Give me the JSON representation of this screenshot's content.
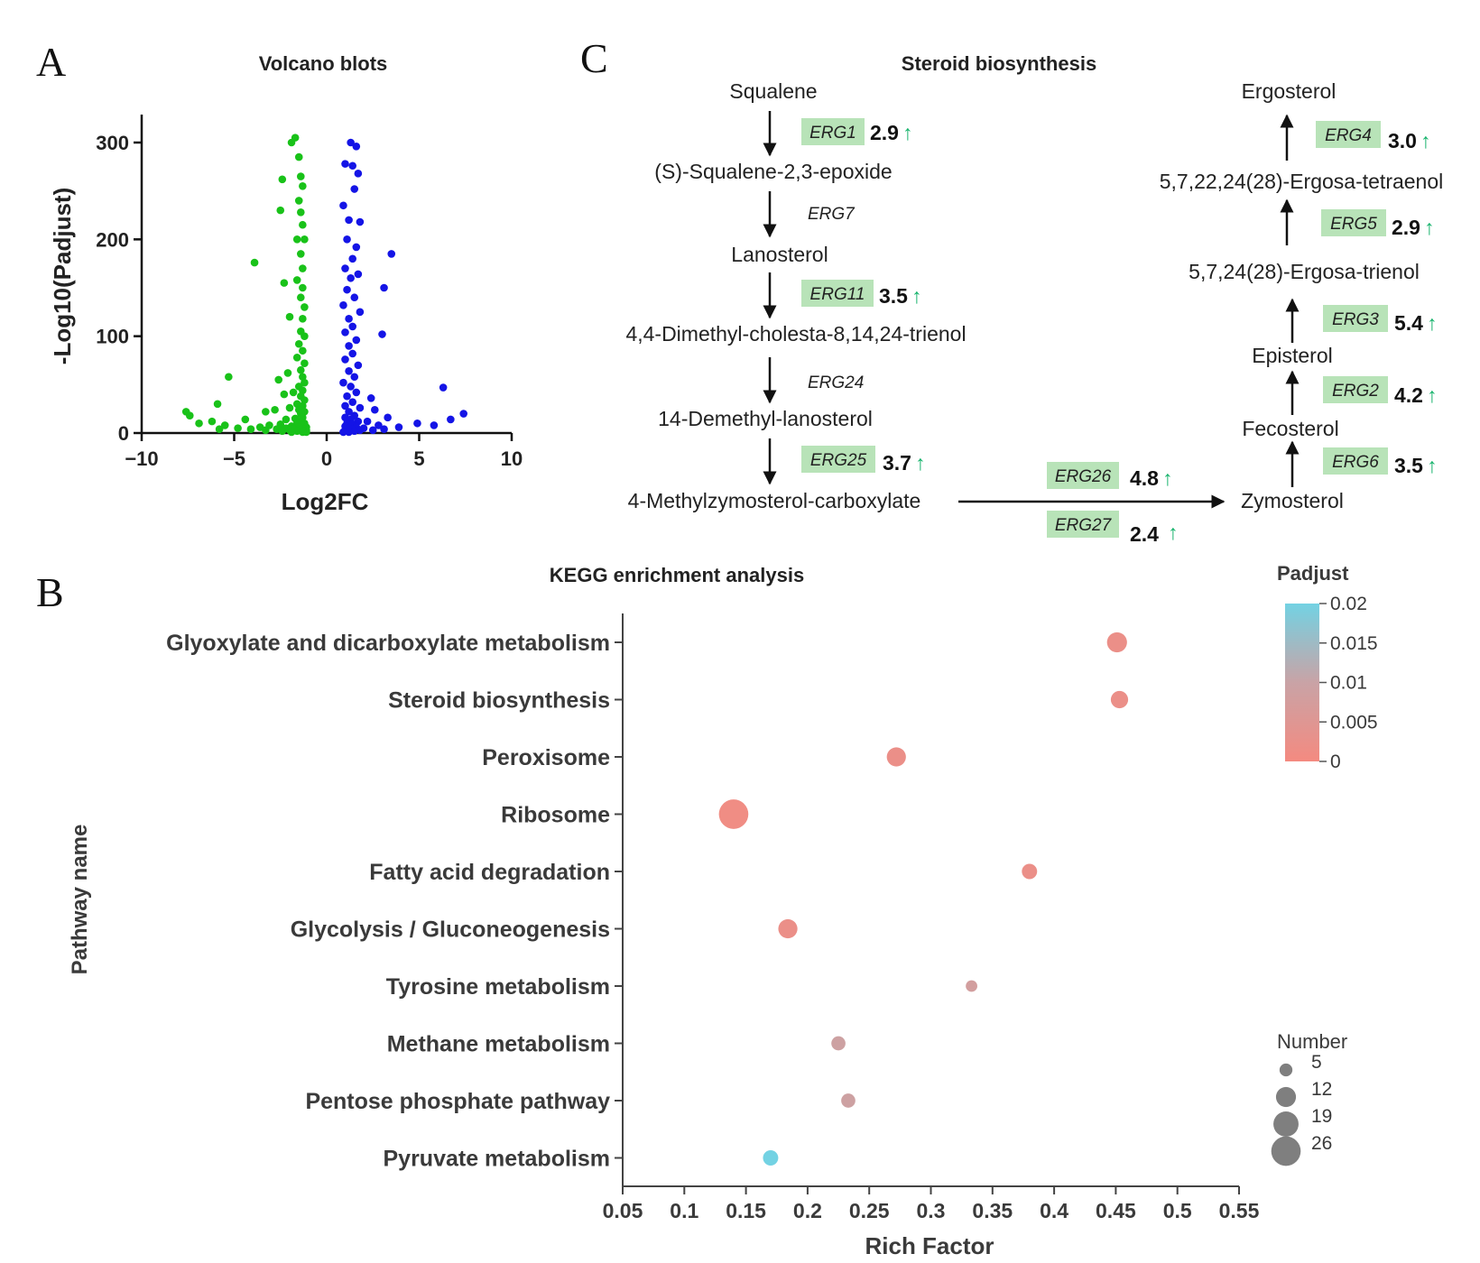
{
  "panels": {
    "a": "A",
    "b": "B",
    "c": "C"
  },
  "chart_data": [
    {
      "type": "scatter",
      "title": "Volcano blots",
      "xlabel": "Log2FC",
      "ylabel": "-Log10(Padjust)",
      "xlim": [
        -10,
        10
      ],
      "ylim": [
        0,
        330
      ],
      "x_ticks": [
        "−10",
        "−5",
        "0",
        "5",
        "10"
      ],
      "x_tick_values": [
        -10,
        -5,
        0,
        5,
        10
      ],
      "y_ticks": [
        "0",
        "100",
        "200",
        "300"
      ],
      "y_tick_values": [
        0,
        100,
        200,
        300
      ],
      "colors": {
        "down": "#19c219",
        "up": "#1414e6"
      },
      "series": [
        {
          "name": "down",
          "points": [
            [
              -1.9,
              300
            ],
            [
              -1.7,
              305
            ],
            [
              -1.5,
              285
            ],
            [
              -1.4,
              265
            ],
            [
              -1.3,
              255
            ],
            [
              -1.5,
              240
            ],
            [
              -2.4,
              262
            ],
            [
              -2.5,
              230
            ],
            [
              -1.4,
              228
            ],
            [
              -1.3,
              215
            ],
            [
              -1.6,
              200
            ],
            [
              -1.2,
              200
            ],
            [
              -1.4,
              185
            ],
            [
              -1.3,
              170
            ],
            [
              -3.9,
              176
            ],
            [
              -1.6,
              158
            ],
            [
              -1.3,
              150
            ],
            [
              -2.3,
              155
            ],
            [
              -1.4,
              140
            ],
            [
              -1.2,
              130
            ],
            [
              -2.0,
              120
            ],
            [
              -1.3,
              118
            ],
            [
              -1.4,
              105
            ],
            [
              -1.2,
              100
            ],
            [
              -1.5,
              92
            ],
            [
              -1.3,
              85
            ],
            [
              -1.6,
              78
            ],
            [
              -1.2,
              72
            ],
            [
              -1.4,
              65
            ],
            [
              -2.1,
              62
            ],
            [
              -1.3,
              58
            ],
            [
              -2.6,
              55
            ],
            [
              -5.3,
              58
            ],
            [
              -1.2,
              52
            ],
            [
              -1.5,
              48
            ],
            [
              -1.3,
              44
            ],
            [
              -1.8,
              42
            ],
            [
              -2.3,
              40
            ],
            [
              -1.4,
              38
            ],
            [
              -1.2,
              34
            ],
            [
              -1.6,
              30
            ],
            [
              -1.3,
              28
            ],
            [
              -2.0,
              26
            ],
            [
              -5.9,
              30
            ],
            [
              -1.5,
              24
            ],
            [
              -1.2,
              22
            ],
            [
              -2.8,
              24
            ],
            [
              -1.4,
              20
            ],
            [
              -3.3,
              22
            ],
            [
              -7.6,
              22
            ],
            [
              -7.4,
              18
            ],
            [
              -1.3,
              16
            ],
            [
              -1.7,
              15
            ],
            [
              -2.2,
              14
            ],
            [
              -1.4,
              12
            ],
            [
              -4.4,
              14
            ],
            [
              -6.2,
              12
            ],
            [
              -1.2,
              10
            ],
            [
              -1.6,
              10
            ],
            [
              -2.5,
              9
            ],
            [
              -3.1,
              8
            ],
            [
              -5.5,
              8
            ],
            [
              -6.9,
              10
            ],
            [
              -1.3,
              8
            ],
            [
              -1.9,
              7
            ],
            [
              -1.1,
              6
            ],
            [
              -1.5,
              6
            ],
            [
              -3.6,
              6
            ],
            [
              -4.8,
              5
            ],
            [
              -2.2,
              5
            ],
            [
              -1.2,
              4
            ],
            [
              -1.8,
              4
            ],
            [
              -2.7,
              4
            ],
            [
              -4.1,
              4
            ],
            [
              -5.8,
              4
            ],
            [
              -1.1,
              3
            ],
            [
              -1.4,
              3
            ],
            [
              -2.0,
              3
            ],
            [
              -3.3,
              3
            ],
            [
              -1.2,
              2
            ],
            [
              -1.6,
              2
            ],
            [
              -2.4,
              2
            ],
            [
              -1.1,
              1
            ],
            [
              -1.3,
              1
            ],
            [
              -1.9,
              1
            ]
          ]
        },
        {
          "name": "up",
          "points": [
            [
              1.3,
              300
            ],
            [
              1.6,
              296
            ],
            [
              1.0,
              278
            ],
            [
              1.4,
              276
            ],
            [
              1.7,
              268
            ],
            [
              1.5,
              252
            ],
            [
              0.9,
              235
            ],
            [
              1.2,
              220
            ],
            [
              1.8,
              218
            ],
            [
              1.1,
              200
            ],
            [
              1.6,
              192
            ],
            [
              3.5,
              185
            ],
            [
              3.1,
              150
            ],
            [
              1.4,
              180
            ],
            [
              1.0,
              170
            ],
            [
              1.3,
              160
            ],
            [
              1.7,
              164
            ],
            [
              1.1,
              148
            ],
            [
              1.5,
              140
            ],
            [
              0.9,
              132
            ],
            [
              1.8,
              125
            ],
            [
              1.2,
              118
            ],
            [
              1.4,
              110
            ],
            [
              1.0,
              104
            ],
            [
              3.0,
              102
            ],
            [
              1.6,
              96
            ],
            [
              1.2,
              90
            ],
            [
              1.4,
              82
            ],
            [
              1.0,
              76
            ],
            [
              1.7,
              70
            ],
            [
              1.2,
              64
            ],
            [
              1.5,
              58
            ],
            [
              0.9,
              52
            ],
            [
              1.3,
              48
            ],
            [
              6.3,
              47
            ],
            [
              1.6,
              42
            ],
            [
              1.1,
              38
            ],
            [
              2.4,
              36
            ],
            [
              1.4,
              32
            ],
            [
              1.0,
              28
            ],
            [
              1.8,
              26
            ],
            [
              2.6,
              24
            ],
            [
              1.2,
              22
            ],
            [
              7.4,
              20
            ],
            [
              1.5,
              18
            ],
            [
              1.0,
              16
            ],
            [
              3.3,
              16
            ],
            [
              6.7,
              14
            ],
            [
              1.3,
              14
            ],
            [
              1.7,
              12
            ],
            [
              2.2,
              12
            ],
            [
              4.9,
              10
            ],
            [
              1.1,
              10
            ],
            [
              1.4,
              9
            ],
            [
              2.8,
              8
            ],
            [
              5.8,
              8
            ],
            [
              1.0,
              7
            ],
            [
              1.6,
              6
            ],
            [
              3.9,
              6
            ],
            [
              1.2,
              5
            ],
            [
              2.0,
              5
            ],
            [
              1.4,
              4
            ],
            [
              3.1,
              4
            ],
            [
              1.0,
              3
            ],
            [
              1.8,
              3
            ],
            [
              2.5,
              3
            ],
            [
              1.1,
              2
            ],
            [
              1.5,
              2
            ],
            [
              1.2,
              1
            ],
            [
              0.9,
              1
            ]
          ]
        }
      ]
    },
    {
      "type": "scatter",
      "title": "KEGG enrichment analysis",
      "xlabel": "Rich Factor",
      "ylabel": "Pathway name",
      "xlim": [
        0.05,
        0.55
      ],
      "x_ticks": [
        "0.05",
        "0.1",
        "0.15",
        "0.2",
        "0.25",
        "0.3",
        "0.35",
        "0.4",
        "0.45",
        "0.5",
        "0.55"
      ],
      "x_tick_values": [
        0.05,
        0.1,
        0.15,
        0.2,
        0.25,
        0.3,
        0.35,
        0.4,
        0.45,
        0.5,
        0.55
      ],
      "categories": [
        "Glyoxylate and dicarboxylate metabolism",
        "Steroid biosynthesis",
        "Peroxisome",
        "Ribosome",
        "Fatty acid degradation",
        "Glycolysis / Gluconeogenesis",
        "Tyrosine metabolism",
        "Methane metabolism",
        "Pentose phosphate pathway",
        "Pyruvate metabolism"
      ],
      "rich_factor": [
        0.451,
        0.453,
        0.272,
        0.14,
        0.38,
        0.184,
        0.333,
        0.225,
        0.233,
        0.17
      ],
      "number": [
        12,
        9,
        11,
        26,
        7,
        11,
        4,
        6,
        6,
        7
      ],
      "padjust": [
        0.002,
        0.002,
        0.002,
        0.001,
        0.002,
        0.002,
        0.008,
        0.009,
        0.009,
        0.02
      ],
      "color_legend": {
        "title": "Padjust",
        "ticks": [
          "0.02",
          "0.015",
          "0.01",
          "0.005",
          "0"
        ],
        "tick_values": [
          0.02,
          0.015,
          0.01,
          0.005,
          0
        ],
        "low_color": "#f48a80",
        "high_color": "#73d2e3"
      },
      "size_legend": {
        "title": "Number",
        "labels": [
          "5",
          "12",
          "19",
          "26"
        ],
        "values": [
          5,
          12,
          19,
          26
        ]
      }
    }
  ],
  "pathway": {
    "title": "Steroid biosynthesis",
    "compounds": {
      "squalene": "Squalene",
      "epoxide": "(S)-Squalene-2,3-epoxide",
      "lanosterol": "Lanosterol",
      "dimethyl": "4,4-Dimethyl-cholesta-8,14,24-trienol",
      "demethyl": "14-Demethyl-lanosterol",
      "methylzymo": "4-Methylzymosterol-carboxylate",
      "zymosterol": "Zymosterol",
      "fecosterol": "Fecosterol",
      "episterol": "Episterol",
      "trienol": "5,7,24(28)-Ergosa-trienol",
      "tetraenol": "5,7,22,24(28)-Ergosa-tetraenol",
      "ergosterol": "Ergosterol"
    },
    "enzymes": {
      "erg1": {
        "name": "ERG1",
        "fold": "2.9"
      },
      "erg7": {
        "name": "ERG7"
      },
      "erg11": {
        "name": "ERG11",
        "fold": "3.5"
      },
      "erg24": {
        "name": "ERG24"
      },
      "erg25": {
        "name": "ERG25",
        "fold": "3.7"
      },
      "erg26": {
        "name": "ERG26",
        "fold": "4.8"
      },
      "erg27": {
        "name": "ERG27",
        "fold": "2.4"
      },
      "erg6": {
        "name": "ERG6",
        "fold": "3.5"
      },
      "erg2": {
        "name": "ERG2",
        "fold": "4.2"
      },
      "erg3": {
        "name": "ERG3",
        "fold": "5.4"
      },
      "erg5": {
        "name": "ERG5",
        "fold": "2.9"
      },
      "erg4": {
        "name": "ERG4",
        "fold": "3.0"
      }
    },
    "up_arrow": "↑",
    "highlight_color": "#b8e3b8",
    "up_color": "#16b36c"
  }
}
